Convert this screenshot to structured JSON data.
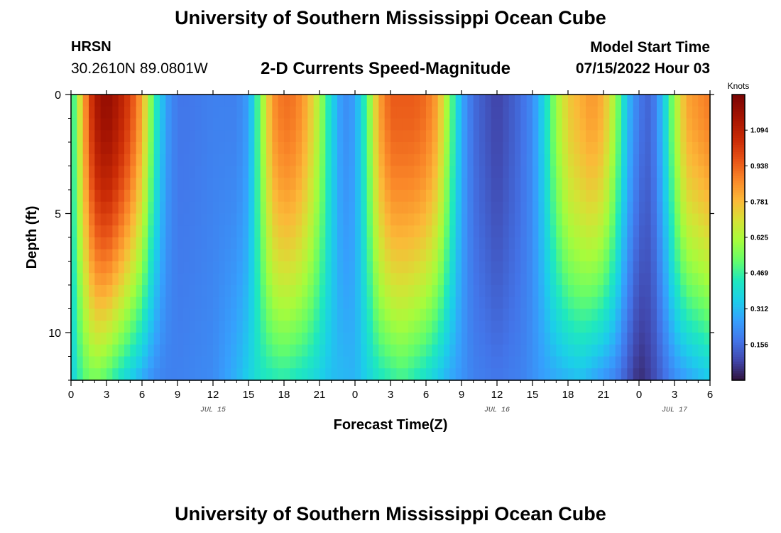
{
  "header": {
    "title": "University of Southern Mississippi Ocean Cube",
    "station": "HRSN",
    "coordinates": "30.2610N  89.0801W",
    "subtitle": "2-D Currents Speed-Magnitude",
    "model_start_label": "Model Start Time",
    "model_start_value": "07/15/2022 Hour 03"
  },
  "footer": {
    "title": "University of Southern Mississippi Ocean Cube"
  },
  "chart_data": {
    "type": "heatmap",
    "title": "2-D Currents Speed-Magnitude",
    "xlabel": "Forecast Time(Z)",
    "ylabel": "Depth (ft)",
    "x_unit": "hours since 2022-07-15 00Z",
    "xlim": [
      0,
      54
    ],
    "ylim": [
      0,
      12
    ],
    "y_reversed": true,
    "x_ticks": [
      0,
      3,
      6,
      9,
      12,
      15,
      18,
      21,
      24,
      27,
      30,
      33,
      36,
      39,
      42,
      45,
      48,
      51,
      54
    ],
    "x_tick_labels": [
      "0",
      "3",
      "6",
      "9",
      "12",
      "15",
      "18",
      "21",
      "0",
      "3",
      "6",
      "9",
      "12",
      "15",
      "18",
      "21",
      "0",
      "3",
      "6"
    ],
    "y_ticks": [
      0,
      5,
      10
    ],
    "y_tick_labels": [
      "0",
      "5",
      "10"
    ],
    "date_labels": [
      {
        "x": 12,
        "text": "JUL 15"
      },
      {
        "x": 36,
        "text": "JUL 16"
      },
      {
        "x": 51,
        "text": "JUL 17"
      }
    ],
    "colorbar": {
      "label": "Knots",
      "min": 0,
      "max": 1.25,
      "ticks": [
        0.156,
        0.312,
        0.469,
        0.625,
        0.781,
        0.938,
        1.094
      ],
      "tick_labels": [
        "0.156",
        "0.312",
        "0.469",
        "0.625",
        "0.781",
        "0.938",
        "1.094"
      ]
    },
    "surface_speed_profile_knots": [
      {
        "t": 0,
        "v": 0.4
      },
      {
        "t": 1,
        "v": 0.8
      },
      {
        "t": 2,
        "v": 1.12
      },
      {
        "t": 3,
        "v": 1.2
      },
      {
        "t": 4,
        "v": 1.12
      },
      {
        "t": 5,
        "v": 1.0
      },
      {
        "t": 6,
        "v": 0.82
      },
      {
        "t": 7,
        "v": 0.48
      },
      {
        "t": 8,
        "v": 0.26
      },
      {
        "t": 9,
        "v": 0.18
      },
      {
        "t": 10,
        "v": 0.18
      },
      {
        "t": 12,
        "v": 0.2
      },
      {
        "t": 14,
        "v": 0.2
      },
      {
        "t": 15,
        "v": 0.26
      },
      {
        "t": 16,
        "v": 0.55
      },
      {
        "t": 17,
        "v": 0.85
      },
      {
        "t": 18,
        "v": 0.92
      },
      {
        "t": 19,
        "v": 0.9
      },
      {
        "t": 20,
        "v": 0.8
      },
      {
        "t": 21,
        "v": 0.62
      },
      {
        "t": 22,
        "v": 0.38
      },
      {
        "t": 23,
        "v": 0.22
      },
      {
        "t": 24,
        "v": 0.26
      },
      {
        "t": 25,
        "v": 0.5
      },
      {
        "t": 26,
        "v": 0.82
      },
      {
        "t": 27,
        "v": 0.95
      },
      {
        "t": 29,
        "v": 0.95
      },
      {
        "t": 30,
        "v": 0.92
      },
      {
        "t": 31,
        "v": 0.82
      },
      {
        "t": 32,
        "v": 0.55
      },
      {
        "t": 33,
        "v": 0.28
      },
      {
        "t": 34,
        "v": 0.16
      },
      {
        "t": 35,
        "v": 0.12
      },
      {
        "t": 36,
        "v": 0.08
      },
      {
        "t": 37,
        "v": 0.12
      },
      {
        "t": 38,
        "v": 0.16
      },
      {
        "t": 39,
        "v": 0.22
      },
      {
        "t": 40,
        "v": 0.38
      },
      {
        "t": 41,
        "v": 0.6
      },
      {
        "t": 42,
        "v": 0.75
      },
      {
        "t": 44,
        "v": 0.85
      },
      {
        "t": 45,
        "v": 0.8
      },
      {
        "t": 46,
        "v": 0.6
      },
      {
        "t": 47,
        "v": 0.32
      },
      {
        "t": 48,
        "v": 0.18
      },
      {
        "t": 49,
        "v": 0.14
      },
      {
        "t": 50,
        "v": 0.32
      },
      {
        "t": 51,
        "v": 0.6
      },
      {
        "t": 52,
        "v": 0.82
      },
      {
        "t": 54,
        "v": 0.9
      }
    ],
    "bottom_speed_profile_knots": [
      {
        "t": 0,
        "v": 0.35
      },
      {
        "t": 1,
        "v": 0.5
      },
      {
        "t": 2,
        "v": 0.55
      },
      {
        "t": 3,
        "v": 0.5
      },
      {
        "t": 4,
        "v": 0.42
      },
      {
        "t": 5,
        "v": 0.35
      },
      {
        "t": 6,
        "v": 0.28
      },
      {
        "t": 7,
        "v": 0.22
      },
      {
        "t": 8,
        "v": 0.2
      },
      {
        "t": 9,
        "v": 0.2
      },
      {
        "t": 12,
        "v": 0.22
      },
      {
        "t": 14,
        "v": 0.3
      },
      {
        "t": 16,
        "v": 0.42
      },
      {
        "t": 18,
        "v": 0.45
      },
      {
        "t": 20,
        "v": 0.4
      },
      {
        "t": 22,
        "v": 0.32
      },
      {
        "t": 24,
        "v": 0.3
      },
      {
        "t": 26,
        "v": 0.42
      },
      {
        "t": 28,
        "v": 0.48
      },
      {
        "t": 30,
        "v": 0.4
      },
      {
        "t": 32,
        "v": 0.28
      },
      {
        "t": 34,
        "v": 0.2
      },
      {
        "t": 36,
        "v": 0.18
      },
      {
        "t": 38,
        "v": 0.2
      },
      {
        "t": 40,
        "v": 0.26
      },
      {
        "t": 43,
        "v": 0.32
      },
      {
        "t": 46,
        "v": 0.2
      },
      {
        "t": 48,
        "v": 0.04
      },
      {
        "t": 49,
        "v": 0.08
      },
      {
        "t": 51,
        "v": 0.22
      },
      {
        "t": 54,
        "v": 0.34
      }
    ]
  }
}
